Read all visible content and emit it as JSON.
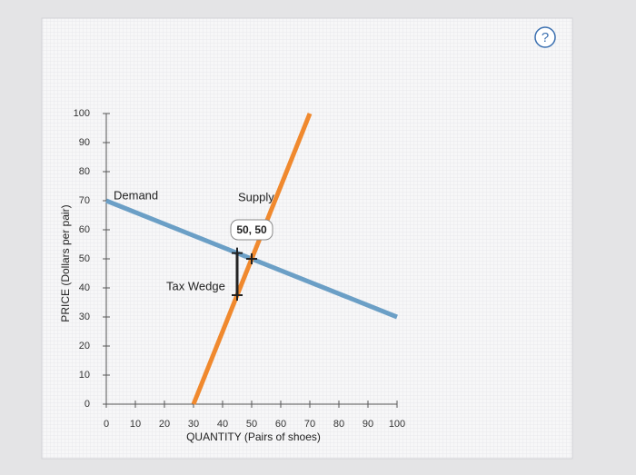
{
  "help_button": "?",
  "chart_data": {
    "type": "line",
    "xlabel": "QUANTITY (Pairs of shoes)",
    "ylabel": "PRICE (Dollars per pair)",
    "xlim": [
      0,
      100
    ],
    "ylim": [
      0,
      100
    ],
    "xticks": [
      0,
      10,
      20,
      30,
      40,
      50,
      60,
      70,
      80,
      90,
      100
    ],
    "yticks": [
      0,
      10,
      20,
      30,
      40,
      50,
      60,
      70,
      80,
      90,
      100
    ],
    "grid": false,
    "series": [
      {
        "name": "Demand",
        "color": "#6b9fc6",
        "x": [
          0,
          100
        ],
        "values": [
          70,
          30
        ]
      },
      {
        "name": "Supply",
        "color": "#f0892e",
        "x": [
          30,
          70
        ],
        "values": [
          0,
          100
        ]
      },
      {
        "name": "Tax Wedge",
        "color": "#222222",
        "x": [
          45,
          45
        ],
        "values": [
          52,
          37.5
        ]
      }
    ],
    "point": {
      "x": 50,
      "y": 50,
      "label": "50, 50"
    }
  }
}
